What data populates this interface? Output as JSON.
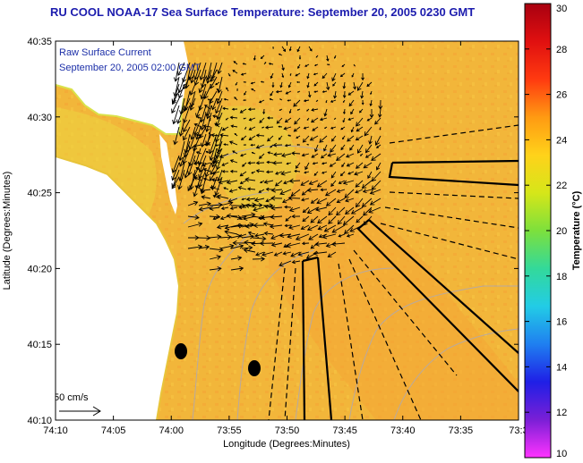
{
  "title": "RU COOL  NOAA-17  Sea Surface Temperature:  September 20, 2005 0230 GMT",
  "annotation": {
    "line1": "Raw Surface Current",
    "line2": "September 20, 2005 02:00 GMT"
  },
  "scale_label": "50 cm/s",
  "x_axis": {
    "label": "Longitude (Degrees:Minutes)",
    "ticks": [
      "74:10",
      "74:05",
      "74:00",
      "73:55",
      "73:50",
      "73:45",
      "73:40",
      "73:35",
      "73:3"
    ]
  },
  "y_axis": {
    "label": "Latitude (Degrees:Minutes)",
    "ticks": [
      "40:35",
      "40:30",
      "40:25",
      "40:20",
      "40:15",
      "40:10"
    ]
  },
  "colorbar": {
    "label": "Temperature (°C)",
    "ticks": [
      "30",
      "28",
      "26",
      "24",
      "22",
      "20",
      "18",
      "16",
      "14",
      "12",
      "10"
    ],
    "range": [
      10,
      30
    ],
    "colors": [
      "#ff33ff",
      "#7a1fd6",
      "#1f1fe6",
      "#1f7ff0",
      "#22cce6",
      "#33d99a",
      "#7de03c",
      "#d6e619",
      "#ffd21a",
      "#ff9a12",
      "#ff3a10",
      "#e01010",
      "#a80010"
    ]
  },
  "colors": {
    "sea": "#f2b63a",
    "land": "#e8d44a",
    "title": "#1c1cae",
    "vectors": "#000000"
  }
}
